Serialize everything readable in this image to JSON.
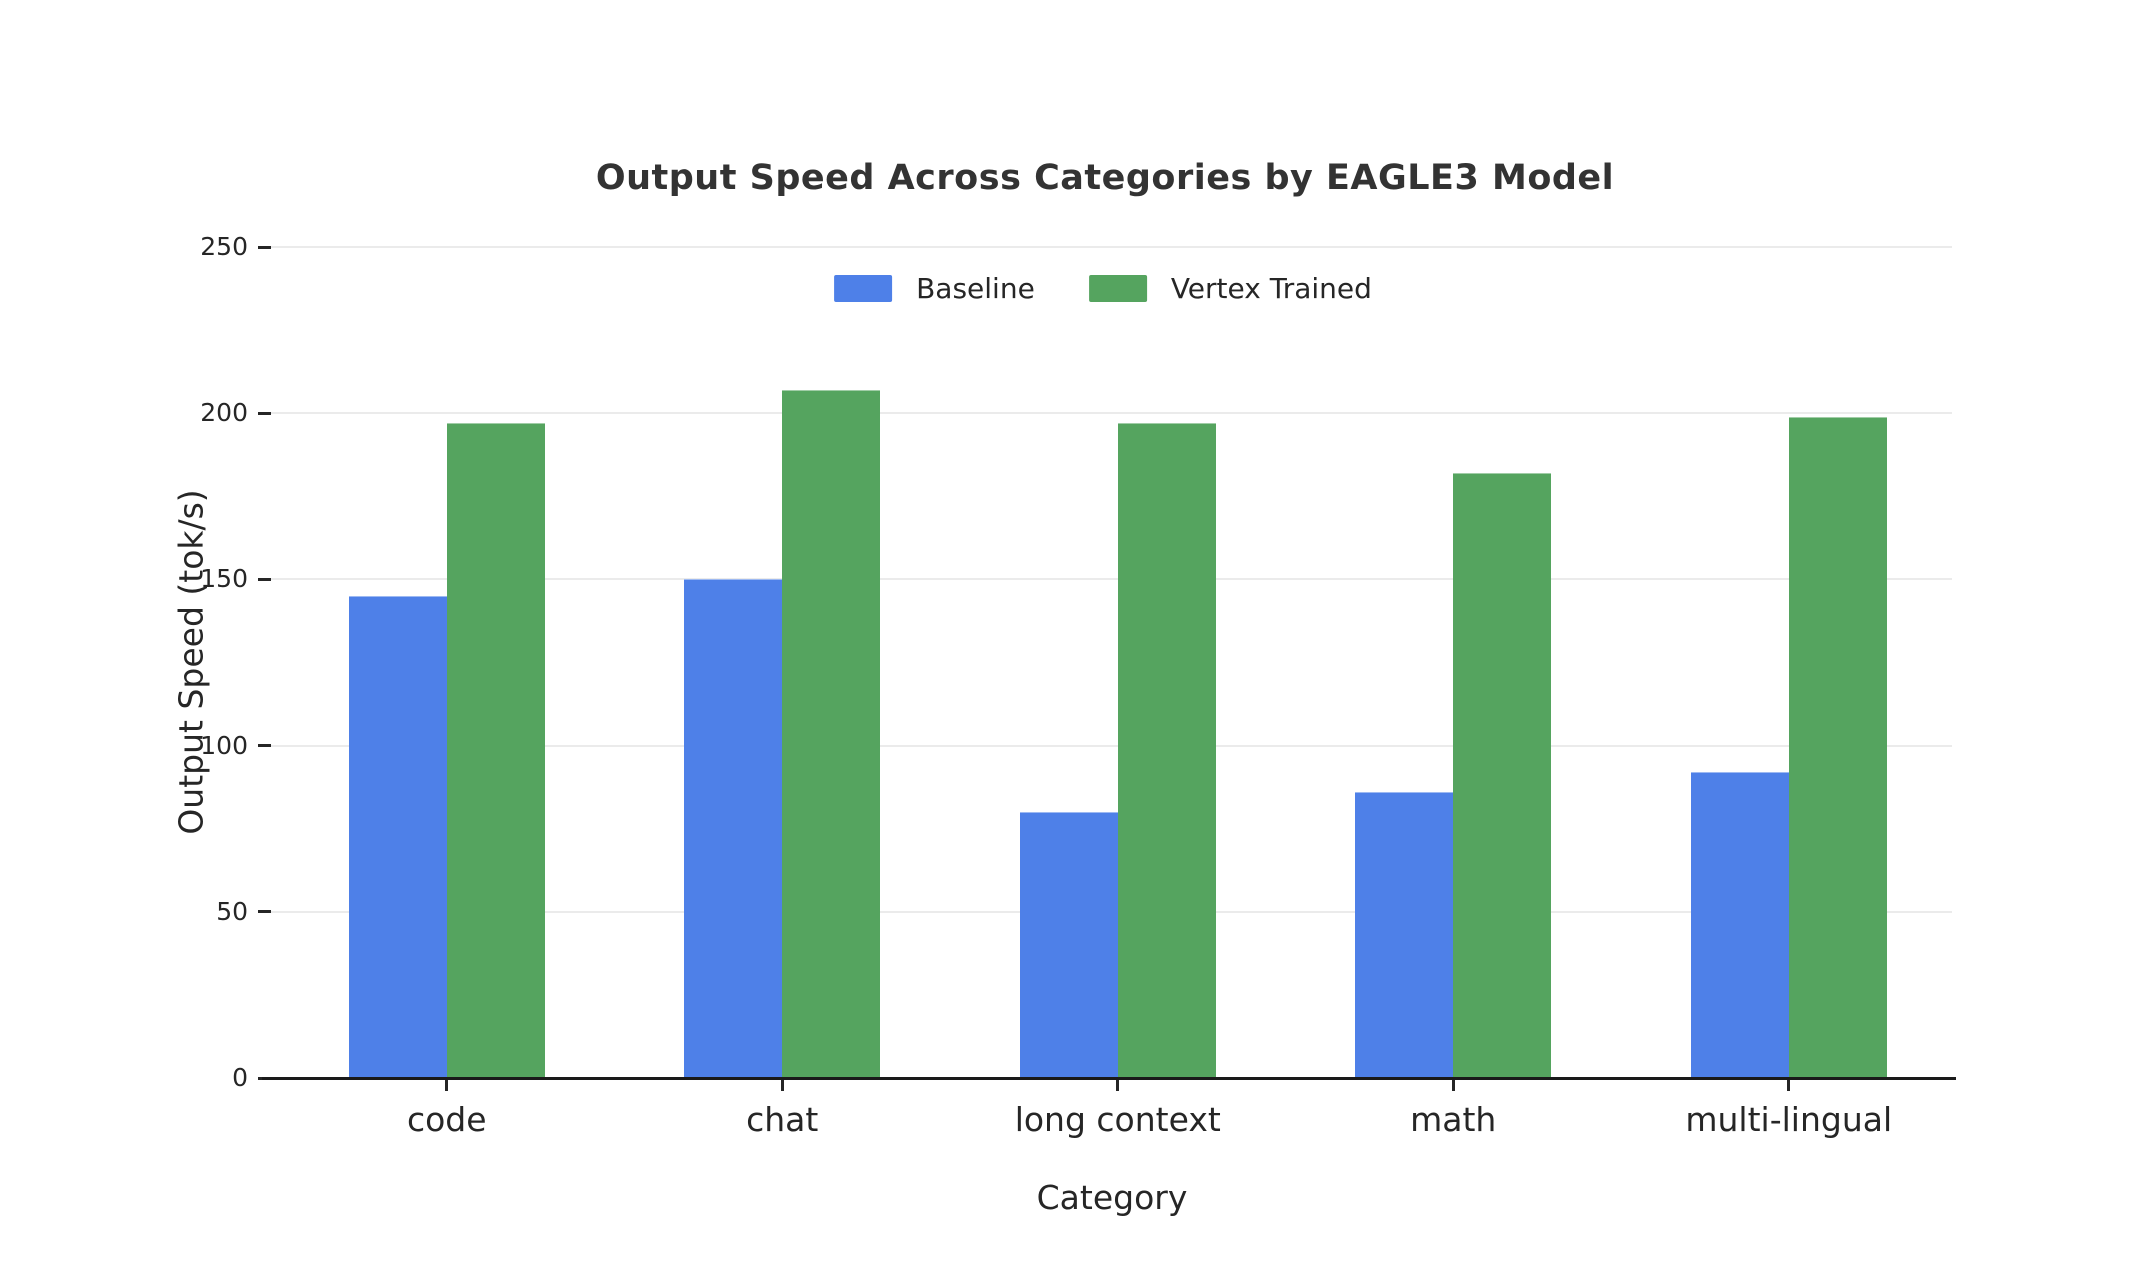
{
  "chart_data": {
    "type": "bar",
    "title": "Output Speed Across Categories by EAGLE3 Model",
    "xlabel": "Category",
    "ylabel": "Output Speed (tok/s)",
    "categories": [
      "code",
      "chat",
      "long context",
      "math",
      "multi-lingual"
    ],
    "series": [
      {
        "name": "Baseline",
        "color": "#4E80E8",
        "values": [
          145,
          150,
          80,
          86,
          92
        ]
      },
      {
        "name": "Vertex Trained",
        "color": "#55A45F",
        "values": [
          197,
          207,
          197,
          182,
          199
        ]
      }
    ],
    "ylim": [
      0,
      250
    ],
    "yticks": [
      0,
      50,
      100,
      150,
      200,
      250
    ],
    "grid": true,
    "legend_position": "top-center",
    "background": "#ffffff",
    "grid_color": "#ebebeb",
    "axis_color": "#1a1a1a",
    "tick_color": "#262626",
    "text_color": "#262626",
    "title_color": "#333333"
  }
}
